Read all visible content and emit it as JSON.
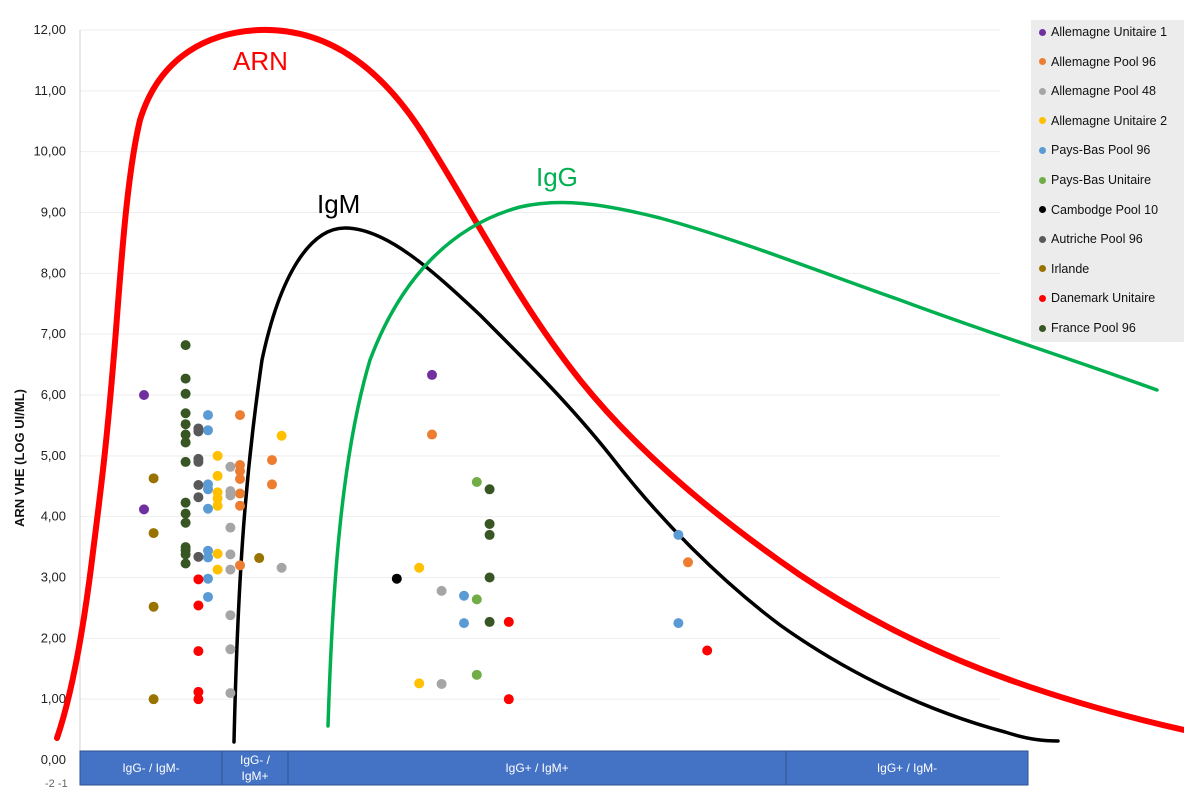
{
  "chart_data": {
    "type": "scatter",
    "ylabel": "ARN VHE (LOG UI/ML)",
    "ylim": [
      0,
      12
    ],
    "y_ticks": [
      "0,00",
      "1,00",
      "2,00",
      "3,00",
      "4,00",
      "5,00",
      "6,00",
      "7,00",
      "8,00",
      "9,00",
      "10,00",
      "11,00",
      "12,00"
    ],
    "x_axis_stray_labels": "-2 -1",
    "grid": true,
    "legend_position": "right",
    "categories": [
      {
        "label": "IgG- / IgM-"
      },
      {
        "label": "IgG- / IgM+"
      },
      {
        "label": "IgG+ / IgM+"
      },
      {
        "label": "IgG+ / IgM-"
      }
    ],
    "curves": [
      {
        "name": "ARN",
        "color": "#ff0000"
      },
      {
        "name": "IgM",
        "color": "#000000"
      },
      {
        "name": "IgG",
        "color": "#00b050"
      }
    ],
    "series": [
      {
        "name": "Allemagne Unitaire 1",
        "color": "#7030a0",
        "points": [
          [
            2.0,
            6.0
          ],
          [
            2.0,
            4.12
          ],
          [
            11.0,
            6.33
          ]
        ]
      },
      {
        "name": "Allemagne Pool 96",
        "color": "#ed7d31",
        "points": [
          [
            5.0,
            5.67
          ],
          [
            5.0,
            4.85
          ],
          [
            5.0,
            4.75
          ],
          [
            5.0,
            4.62
          ],
          [
            5.0,
            4.38
          ],
          [
            5.0,
            4.18
          ],
          [
            5.0,
            3.2
          ],
          [
            6.0,
            4.93
          ],
          [
            6.0,
            4.53
          ],
          [
            11.0,
            5.35
          ],
          [
            19.0,
            3.25
          ]
        ]
      },
      {
        "name": "Allemagne Pool 48",
        "color": "#a5a5a5",
        "points": [
          [
            4.7,
            4.82
          ],
          [
            4.7,
            4.42
          ],
          [
            4.7,
            4.35
          ],
          [
            4.7,
            3.82
          ],
          [
            4.7,
            3.38
          ],
          [
            4.7,
            3.13
          ],
          [
            4.7,
            2.38
          ],
          [
            4.7,
            1.82
          ],
          [
            4.7,
            1.1
          ],
          [
            6.3,
            3.16
          ],
          [
            11.3,
            2.78
          ],
          [
            11.3,
            1.25
          ]
        ]
      },
      {
        "name": "Allemagne Unitaire 2",
        "color": "#ffc000",
        "points": [
          [
            4.3,
            5.0
          ],
          [
            4.3,
            4.67
          ],
          [
            4.3,
            4.4
          ],
          [
            4.3,
            4.3
          ],
          [
            4.3,
            4.18
          ],
          [
            4.3,
            3.39
          ],
          [
            4.3,
            3.13
          ],
          [
            6.3,
            5.33
          ],
          [
            10.6,
            3.16
          ],
          [
            10.6,
            1.26
          ]
        ]
      },
      {
        "name": "Pays-Bas Pool 96",
        "color": "#5b9bd5",
        "points": [
          [
            4.0,
            5.67
          ],
          [
            4.0,
            5.42
          ],
          [
            4.0,
            4.53
          ],
          [
            4.0,
            4.45
          ],
          [
            4.0,
            4.13
          ],
          [
            4.0,
            3.44
          ],
          [
            4.0,
            3.33
          ],
          [
            4.0,
            2.98
          ],
          [
            4.0,
            2.68
          ],
          [
            12.0,
            2.7
          ],
          [
            12.0,
            2.25
          ],
          [
            18.7,
            3.7
          ],
          [
            18.7,
            2.25
          ]
        ]
      },
      {
        "name": "Pays-Bas Unitaire",
        "color": "#70ad47",
        "points": [
          [
            12.4,
            4.57
          ],
          [
            12.4,
            2.64
          ],
          [
            12.4,
            1.4
          ]
        ]
      },
      {
        "name": "Cambodge Pool 10",
        "color": "#000000",
        "points": [
          [
            9.9,
            2.98
          ]
        ]
      },
      {
        "name": "Autriche Pool 96",
        "color": "#595959",
        "points": [
          [
            3.7,
            5.45
          ],
          [
            3.7,
            5.4
          ],
          [
            3.7,
            4.95
          ],
          [
            3.7,
            4.9
          ],
          [
            3.7,
            4.52
          ],
          [
            3.7,
            4.32
          ],
          [
            3.7,
            3.34
          ]
        ]
      },
      {
        "name": "Irlande",
        "color": "#997300",
        "points": [
          [
            2.3,
            4.63
          ],
          [
            2.3,
            3.73
          ],
          [
            2.3,
            2.52
          ],
          [
            2.3,
            1.0
          ],
          [
            5.6,
            3.32
          ]
        ]
      },
      {
        "name": "Danemark Unitaire",
        "color": "#ff0000",
        "points": [
          [
            3.7,
            2.97
          ],
          [
            3.7,
            2.54
          ],
          [
            3.7,
            1.79
          ],
          [
            3.7,
            1.12
          ],
          [
            3.7,
            1.0
          ],
          [
            13.4,
            2.27
          ],
          [
            13.4,
            1.0
          ],
          [
            19.6,
            1.8
          ]
        ]
      },
      {
        "name": "France Pool 96",
        "color": "#375623",
        "points": [
          [
            3.3,
            6.82
          ],
          [
            3.3,
            6.27
          ],
          [
            3.3,
            6.02
          ],
          [
            3.3,
            5.7
          ],
          [
            3.3,
            5.52
          ],
          [
            3.3,
            5.35
          ],
          [
            3.3,
            5.22
          ],
          [
            3.3,
            4.9
          ],
          [
            3.3,
            4.23
          ],
          [
            3.3,
            4.05
          ],
          [
            3.3,
            3.9
          ],
          [
            3.3,
            3.5
          ],
          [
            3.3,
            3.45
          ],
          [
            3.3,
            3.38
          ],
          [
            3.3,
            3.23
          ],
          [
            12.8,
            4.45
          ],
          [
            12.8,
            3.88
          ],
          [
            12.8,
            3.7
          ],
          [
            12.8,
            3.0
          ],
          [
            12.8,
            2.27
          ]
        ]
      }
    ]
  }
}
